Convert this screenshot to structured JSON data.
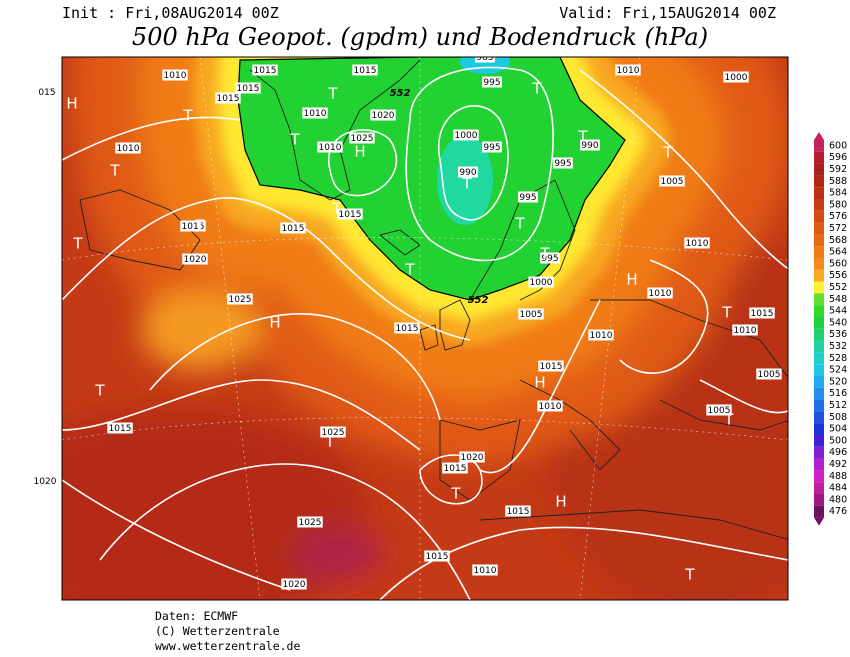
{
  "header": {
    "init": "Init : Fri,08AUG2014 00Z",
    "valid": "Valid: Fri,15AUG2014 00Z",
    "title": "500 hPa Geopot. (gpdm) und Bodendruck (hPa)"
  },
  "colorbar": {
    "levels": [
      "600",
      "596",
      "592",
      "588",
      "584",
      "580",
      "576",
      "572",
      "568",
      "564",
      "560",
      "556",
      "552",
      "548",
      "544",
      "540",
      "536",
      "532",
      "528",
      "524",
      "520",
      "516",
      "512",
      "508",
      "504",
      "500",
      "496",
      "492",
      "488",
      "484",
      "480",
      "476"
    ],
    "colors": [
      "#c8205a",
      "#b41e30",
      "#a82020",
      "#b02814",
      "#bc3012",
      "#c83c12",
      "#d44a12",
      "#de5a12",
      "#e66a14",
      "#ee7a18",
      "#f48a1c",
      "#faa820",
      "#fff030",
      "#60e030",
      "#30d828",
      "#20d040",
      "#20d070",
      "#20d0a0",
      "#20d0c8",
      "#20c8e8",
      "#20a8f0",
      "#2090f0",
      "#2070e8",
      "#2050e0",
      "#2030d8",
      "#4020d0",
      "#8020d0",
      "#b020d0",
      "#d020c8",
      "#c020a0",
      "#a01880",
      "#701060"
    ]
  },
  "isobar_labels": [
    "985",
    "1010",
    "1015",
    "1015",
    "1015",
    "1015",
    "015",
    "1010",
    "1020",
    "1025",
    "1010",
    "1010",
    "995",
    "1000",
    "995",
    "990",
    "995",
    "995",
    "990",
    "1010",
    "1000",
    "1005",
    "1010",
    "1015",
    "1015",
    "1015",
    "1020",
    "1025",
    "1015",
    "995",
    "1000",
    "1005",
    "1010",
    "1010",
    "1015",
    "1010",
    "1015",
    "1010",
    "1005",
    "1005",
    "1015",
    "1025",
    "1020",
    "1015",
    "1015",
    "1020",
    "1025",
    "1015",
    "1010",
    "1020"
  ],
  "geopotential_labels": [
    "552",
    "552"
  ],
  "centers": [
    "H",
    "H",
    "H",
    "H",
    "H",
    "H",
    "T",
    "T",
    "T",
    "T",
    "T",
    "T",
    "T",
    "T",
    "T",
    "T",
    "T",
    "T",
    "T",
    "T",
    "T",
    "T",
    "T",
    "T",
    "T",
    "T"
  ],
  "footer": [
    "Daten: ECMWF",
    "(C) Wetterzentrale",
    "www.wetterzentrale.de"
  ]
}
